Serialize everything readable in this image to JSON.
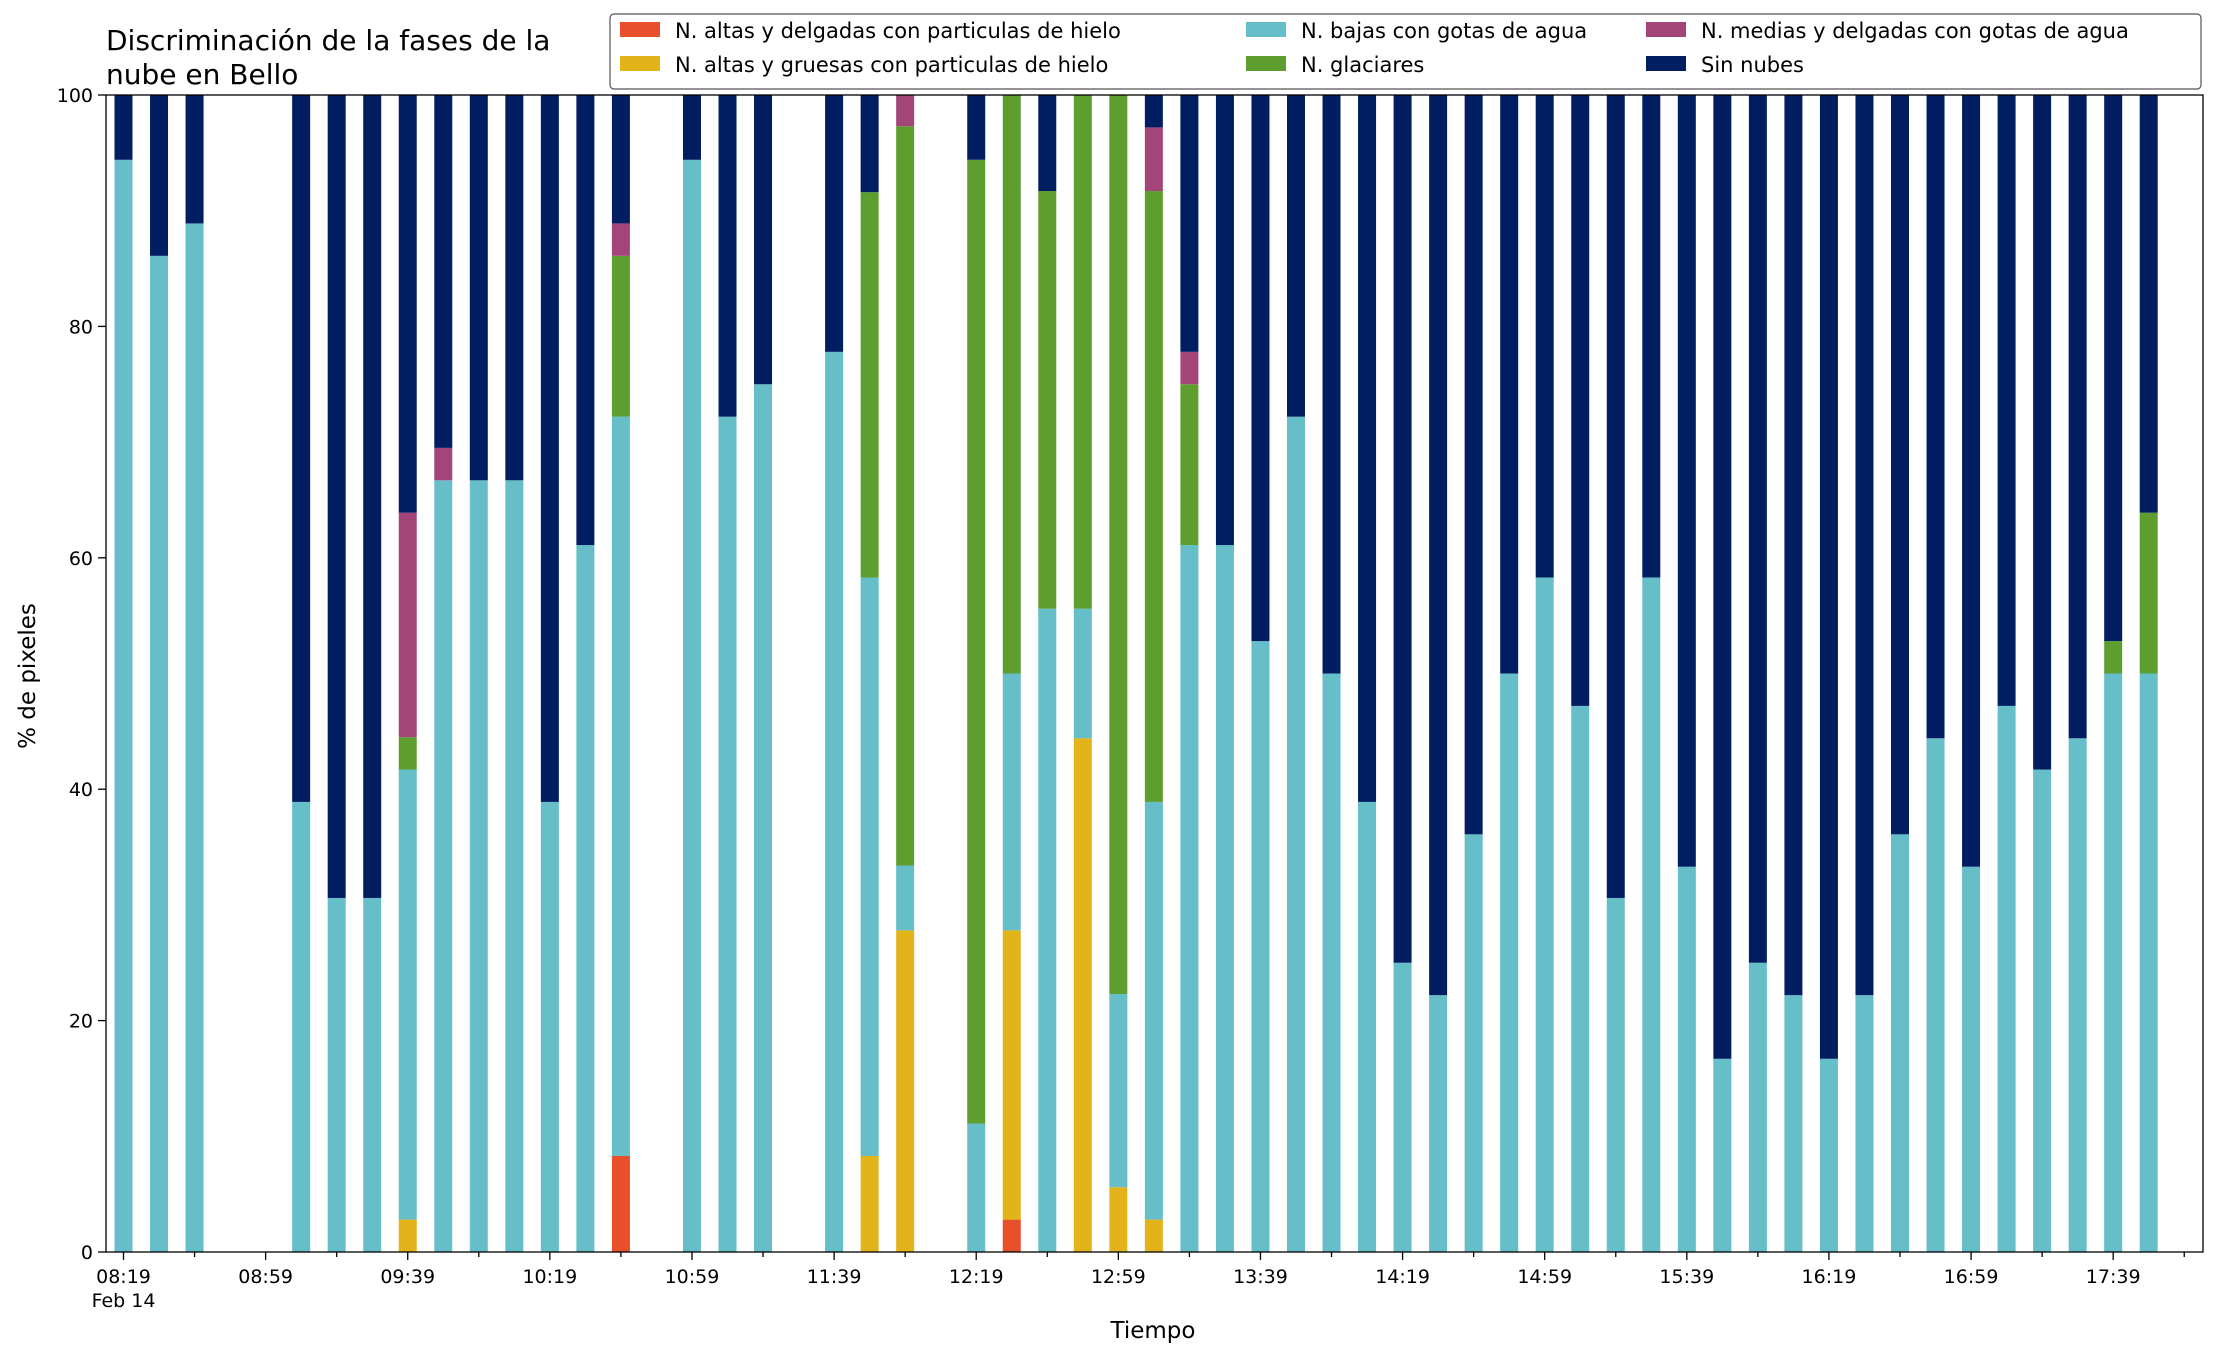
{
  "colors": {
    "ice_thin": "#e8502b",
    "ice_thick": "#e2b41a",
    "water_low": "#65bec8",
    "glaciated": "#5e9e2f",
    "water_mid": "#a4457a",
    "clear": "#021e62"
  },
  "chart_data": {
    "type": "bar",
    "stacked": true,
    "title_lines": [
      "Discriminación de la fases de la",
      "nube en Bello"
    ],
    "xlabel": "Tiempo",
    "ylabel": "% de pixeles",
    "ylim": [
      0,
      100
    ],
    "yticks": [
      0,
      20,
      40,
      60,
      80,
      100
    ],
    "xticks": [
      {
        "slot": 0,
        "label": "08:19"
      },
      {
        "slot": 4,
        "label": "08:59"
      },
      {
        "slot": 8,
        "label": "09:39"
      },
      {
        "slot": 12,
        "label": "10:19"
      },
      {
        "slot": 16,
        "label": "10:59"
      },
      {
        "slot": 20,
        "label": "11:39"
      },
      {
        "slot": 24,
        "label": "12:19"
      },
      {
        "slot": 28,
        "label": "12:59"
      },
      {
        "slot": 32,
        "label": "13:39"
      },
      {
        "slot": 36,
        "label": "14:19"
      },
      {
        "slot": 40,
        "label": "14:59"
      },
      {
        "slot": 44,
        "label": "15:39"
      },
      {
        "slot": 48,
        "label": "16:19"
      },
      {
        "slot": 52,
        "label": "16:59"
      },
      {
        "slot": 56,
        "label": "17:39"
      }
    ],
    "date_label": "Feb 14",
    "legend_location": "top-right",
    "grid": false,
    "series": [
      {
        "key": "ice_thin",
        "name": "N. altas y delgadas con particulas de hielo",
        "color": "#e8502b"
      },
      {
        "key": "ice_thick",
        "name": "N. altas y gruesas con particulas de hielo",
        "color": "#e2b41a"
      },
      {
        "key": "water_low",
        "name": "N. bajas con gotas de agua",
        "color": "#65bec8"
      },
      {
        "key": "glaciated",
        "name": "N. glaciares",
        "color": "#5e9e2f"
      },
      {
        "key": "water_mid",
        "name": "N. medias y delgadas con gotas de agua",
        "color": "#a4457a"
      },
      {
        "key": "clear",
        "name": "Sin nubes",
        "color": "#021e62"
      }
    ],
    "legend_order": [
      "ice_thin",
      "water_low",
      "water_mid",
      "ice_thick",
      "glaciated",
      "clear"
    ],
    "time_step_minutes": 10,
    "bars": [
      {
        "slot": 0,
        "values": [
          0,
          0,
          94.4,
          0,
          0,
          5.6
        ]
      },
      {
        "slot": 1,
        "values": [
          0,
          0,
          86.1,
          0,
          0,
          13.9
        ]
      },
      {
        "slot": 2,
        "values": [
          0,
          0,
          88.9,
          0,
          0,
          11.1
        ]
      },
      {
        "slot": 5,
        "values": [
          0,
          0,
          38.9,
          0,
          0,
          61.1
        ]
      },
      {
        "slot": 6,
        "values": [
          0,
          0,
          30.6,
          0,
          0,
          69.4
        ]
      },
      {
        "slot": 7,
        "values": [
          0,
          0,
          30.6,
          0,
          0,
          69.4
        ]
      },
      {
        "slot": 8,
        "values": [
          0,
          2.8,
          38.9,
          2.8,
          19.4,
          36.1
        ]
      },
      {
        "slot": 9,
        "values": [
          0,
          0,
          66.7,
          0,
          2.8,
          30.5
        ]
      },
      {
        "slot": 10,
        "values": [
          0,
          0,
          66.7,
          0,
          0,
          33.3
        ]
      },
      {
        "slot": 11,
        "values": [
          0,
          0,
          66.7,
          0,
          0,
          33.3
        ]
      },
      {
        "slot": 12,
        "values": [
          0,
          0,
          38.9,
          0,
          0,
          61.1
        ]
      },
      {
        "slot": 13,
        "values": [
          0,
          0,
          61.1,
          0,
          0,
          38.9
        ]
      },
      {
        "slot": 14,
        "values": [
          8.3,
          0,
          63.9,
          13.9,
          2.8,
          11.1
        ]
      },
      {
        "slot": 16,
        "values": [
          0,
          0,
          94.4,
          0,
          0,
          5.6
        ]
      },
      {
        "slot": 17,
        "values": [
          0,
          0,
          72.2,
          0,
          0,
          27.8
        ]
      },
      {
        "slot": 18,
        "values": [
          0,
          0,
          75.0,
          0,
          0,
          25.0
        ]
      },
      {
        "slot": 20,
        "values": [
          0,
          0,
          77.8,
          0,
          0,
          22.2
        ]
      },
      {
        "slot": 21,
        "values": [
          0,
          8.3,
          50.0,
          33.3,
          0,
          8.4
        ]
      },
      {
        "slot": 22,
        "values": [
          0,
          27.8,
          5.6,
          63.9,
          2.7,
          0
        ]
      },
      {
        "slot": 24,
        "values": [
          0,
          0,
          11.1,
          83.3,
          0,
          5.6
        ]
      },
      {
        "slot": 25,
        "values": [
          2.8,
          25.0,
          22.2,
          50.0,
          0,
          0
        ]
      },
      {
        "slot": 26,
        "values": [
          0,
          0,
          55.6,
          36.1,
          0,
          8.3
        ]
      },
      {
        "slot": 27,
        "values": [
          0,
          44.4,
          11.2,
          44.4,
          0,
          0
        ]
      },
      {
        "slot": 28,
        "values": [
          0,
          5.6,
          16.7,
          77.7,
          0,
          0
        ]
      },
      {
        "slot": 29,
        "values": [
          0,
          2.8,
          36.1,
          52.8,
          5.5,
          2.8
        ]
      },
      {
        "slot": 30,
        "values": [
          0,
          0,
          61.1,
          13.9,
          2.8,
          22.2
        ]
      },
      {
        "slot": 31,
        "values": [
          0,
          0,
          61.1,
          0,
          0,
          38.9
        ]
      },
      {
        "slot": 32,
        "values": [
          0,
          0,
          52.8,
          0,
          0,
          47.2
        ]
      },
      {
        "slot": 33,
        "values": [
          0,
          0,
          72.2,
          0,
          0,
          27.8
        ]
      },
      {
        "slot": 34,
        "values": [
          0,
          0,
          50.0,
          0,
          0,
          50.0
        ]
      },
      {
        "slot": 35,
        "values": [
          0,
          0,
          38.9,
          0,
          0,
          61.1
        ]
      },
      {
        "slot": 36,
        "values": [
          0,
          0,
          25.0,
          0,
          0,
          75.0
        ]
      },
      {
        "slot": 37,
        "values": [
          0,
          0,
          22.2,
          0,
          0,
          77.8
        ]
      },
      {
        "slot": 38,
        "values": [
          0,
          0,
          36.1,
          0,
          0,
          63.9
        ]
      },
      {
        "slot": 39,
        "values": [
          0,
          0,
          50.0,
          0,
          0,
          50.0
        ]
      },
      {
        "slot": 40,
        "values": [
          0,
          0,
          58.3,
          0,
          0,
          41.7
        ]
      },
      {
        "slot": 41,
        "values": [
          0,
          0,
          47.2,
          0,
          0,
          52.8
        ]
      },
      {
        "slot": 42,
        "values": [
          0,
          0,
          30.6,
          0,
          0,
          69.4
        ]
      },
      {
        "slot": 43,
        "values": [
          0,
          0,
          58.3,
          0,
          0,
          41.7
        ]
      },
      {
        "slot": 44,
        "values": [
          0,
          0,
          33.3,
          0,
          0,
          66.7
        ]
      },
      {
        "slot": 45,
        "values": [
          0,
          0,
          16.7,
          0,
          0,
          83.3
        ]
      },
      {
        "slot": 46,
        "values": [
          0,
          0,
          25.0,
          0,
          0,
          75.0
        ]
      },
      {
        "slot": 47,
        "values": [
          0,
          0,
          22.2,
          0,
          0,
          77.8
        ]
      },
      {
        "slot": 48,
        "values": [
          0,
          0,
          16.7,
          0,
          0,
          83.3
        ]
      },
      {
        "slot": 49,
        "values": [
          0,
          0,
          22.2,
          0,
          0,
          77.8
        ]
      },
      {
        "slot": 50,
        "values": [
          0,
          0,
          36.1,
          0,
          0,
          63.9
        ]
      },
      {
        "slot": 51,
        "values": [
          0,
          0,
          44.4,
          0,
          0,
          55.6
        ]
      },
      {
        "slot": 52,
        "values": [
          0,
          0,
          33.3,
          0,
          0,
          66.7
        ]
      },
      {
        "slot": 53,
        "values": [
          0,
          0,
          47.2,
          0,
          0,
          52.8
        ]
      },
      {
        "slot": 54,
        "values": [
          0,
          0,
          41.7,
          0,
          0,
          58.3
        ]
      },
      {
        "slot": 55,
        "values": [
          0,
          0,
          44.4,
          0,
          0,
          55.6
        ]
      },
      {
        "slot": 56,
        "values": [
          0,
          0,
          50.0,
          2.8,
          0,
          47.2
        ]
      },
      {
        "slot": 57,
        "values": [
          0,
          0,
          50.0,
          13.9,
          0,
          36.1
        ]
      }
    ]
  }
}
